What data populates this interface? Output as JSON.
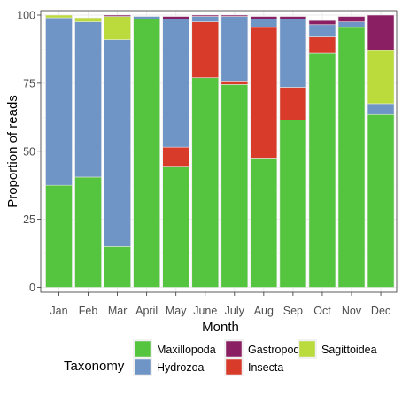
{
  "chart_data": {
    "type": "bar",
    "stacked": true,
    "categories": [
      "Jan",
      "Feb",
      "Mar",
      "April",
      "May",
      "June",
      "July",
      "Aug",
      "Sep",
      "Oct",
      "Nov",
      "Dec"
    ],
    "xlabel": "Month",
    "ylabel": "Proportion of reads",
    "ylim": [
      0,
      100
    ],
    "yticks": [
      0,
      25,
      50,
      75,
      100
    ],
    "grid": true,
    "legend": {
      "title": "Taxonomy",
      "position": "bottom",
      "order": [
        "Maxillopoda",
        "Hydrozoa",
        "Gastropoda",
        "Insecta",
        "Sagittoidea"
      ]
    },
    "series": [
      {
        "name": "Maxillopoda",
        "color": "#55C53F",
        "values": [
          37.5,
          40.5,
          15,
          98.5,
          44.5,
          77,
          74.5,
          47.5,
          61.5,
          86,
          95.5,
          63.5
        ]
      },
      {
        "name": "Insecta",
        "color": "#D93B2B",
        "values": [
          0,
          0,
          0,
          0,
          7,
          20.5,
          1,
          48,
          12,
          6,
          0,
          0
        ]
      },
      {
        "name": "Hydrozoa",
        "color": "#6F95C6",
        "values": [
          61.5,
          57,
          76,
          1,
          47,
          2,
          24,
          3,
          25,
          4.5,
          2,
          4
        ]
      },
      {
        "name": "Sagittoidea",
        "color": "#BBDB3C",
        "values": [
          1,
          1.5,
          8.5,
          0,
          0,
          0,
          0,
          0,
          0,
          0,
          0,
          19.5
        ]
      },
      {
        "name": "Gastropoda",
        "color": "#8B1F63",
        "values": [
          0,
          0,
          0.5,
          0,
          1,
          0.5,
          0.5,
          1,
          1,
          1.5,
          2,
          13
        ]
      }
    ]
  }
}
